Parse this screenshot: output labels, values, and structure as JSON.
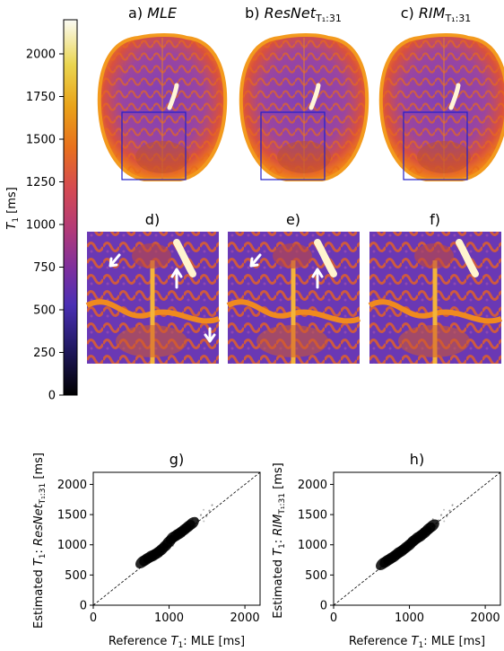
{
  "colorbar": {
    "label_prefix": "T",
    "label_sub": "1",
    "label_suffix": " [ms]",
    "ticks": [
      "0",
      "250",
      "500",
      "750",
      "1000",
      "1250",
      "1500",
      "1750",
      "2000"
    ],
    "range": [
      0,
      2200
    ]
  },
  "panels_top": [
    {
      "prefix": "a) ",
      "name": "MLE",
      "sub": ""
    },
    {
      "prefix": "b) ",
      "name": "ResNet",
      "sub": "T₁:31"
    },
    {
      "prefix": "c) ",
      "name": "RIM",
      "sub": "T₁:31"
    }
  ],
  "panels_mid": [
    {
      "label": "d)"
    },
    {
      "label": "e)"
    },
    {
      "label": "f)"
    }
  ],
  "scatter_titles": [
    "g)",
    "h)"
  ],
  "chart_data": [
    {
      "type": "scatter",
      "title": "g)",
      "xlabel": "Reference T₁: MLE [ms]",
      "ylabel": "Estimated T₁: ResNet T₁:31 [ms]",
      "xlim": [
        0,
        2200
      ],
      "ylim": [
        0,
        2200
      ],
      "xticks": [
        "0",
        "1000",
        "2000"
      ],
      "yticks": [
        "0",
        "500",
        "1000",
        "1500",
        "2000"
      ],
      "identity_line": true,
      "x": [
        650,
        700,
        750,
        800,
        850,
        900,
        950,
        1000,
        1050,
        1100,
        1150,
        1200,
        1250,
        1300
      ],
      "y": [
        720,
        760,
        800,
        830,
        870,
        920,
        980,
        1050,
        1120,
        1160,
        1200,
        1250,
        1300,
        1350
      ]
    },
    {
      "type": "scatter",
      "title": "h)",
      "xlabel": "Reference T₁: MLE [ms]",
      "ylabel": "Estimated T₁: RIM T₁:31 [ms]",
      "xlim": [
        0,
        2200
      ],
      "ylim": [
        0,
        2200
      ],
      "xticks": [
        "0",
        "1000",
        "2000"
      ],
      "yticks": [
        "0",
        "500",
        "1000",
        "1500",
        "2000"
      ],
      "identity_line": true,
      "x": [
        650,
        700,
        750,
        800,
        850,
        900,
        950,
        1000,
        1050,
        1100,
        1150,
        1200,
        1250,
        1300
      ],
      "y": [
        690,
        730,
        770,
        810,
        860,
        900,
        950,
        1000,
        1060,
        1110,
        1150,
        1200,
        1260,
        1310
      ]
    }
  ],
  "scatter_labels": {
    "g_x_prefix": "Reference ",
    "g_x_T": "T",
    "g_x_sub": "1",
    "g_x_suffix": ": MLE [ms]",
    "g_y_prefix": "Estimated ",
    "g_y_T": "T",
    "g_y_sub": "1",
    "g_y_mid": ": ",
    "g_y_name": "ResNet",
    "g_y_name_sub": "T₁:31",
    "g_y_suffix": " [ms]",
    "h_y_name": "RIM"
  }
}
